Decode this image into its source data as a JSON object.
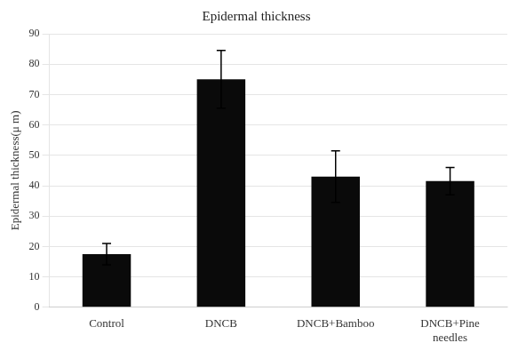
{
  "chart_data": {
    "type": "bar",
    "title": "Epidermal thickness",
    "categories": [
      "Control",
      "DNCB",
      "DNCB+Bamboo",
      "DNCB+Pine\nneedles"
    ],
    "values": [
      17.5,
      75.0,
      43.0,
      41.5
    ],
    "errors": [
      3.5,
      9.5,
      8.5,
      4.5
    ],
    "color": "#0a0a0a",
    "ylabel": "Epidermal thickness(μ m)",
    "ylim": [
      0,
      90
    ],
    "yticks": [
      0,
      10,
      20,
      30,
      40,
      50,
      60,
      70,
      80,
      90
    ],
    "grid": true
  }
}
